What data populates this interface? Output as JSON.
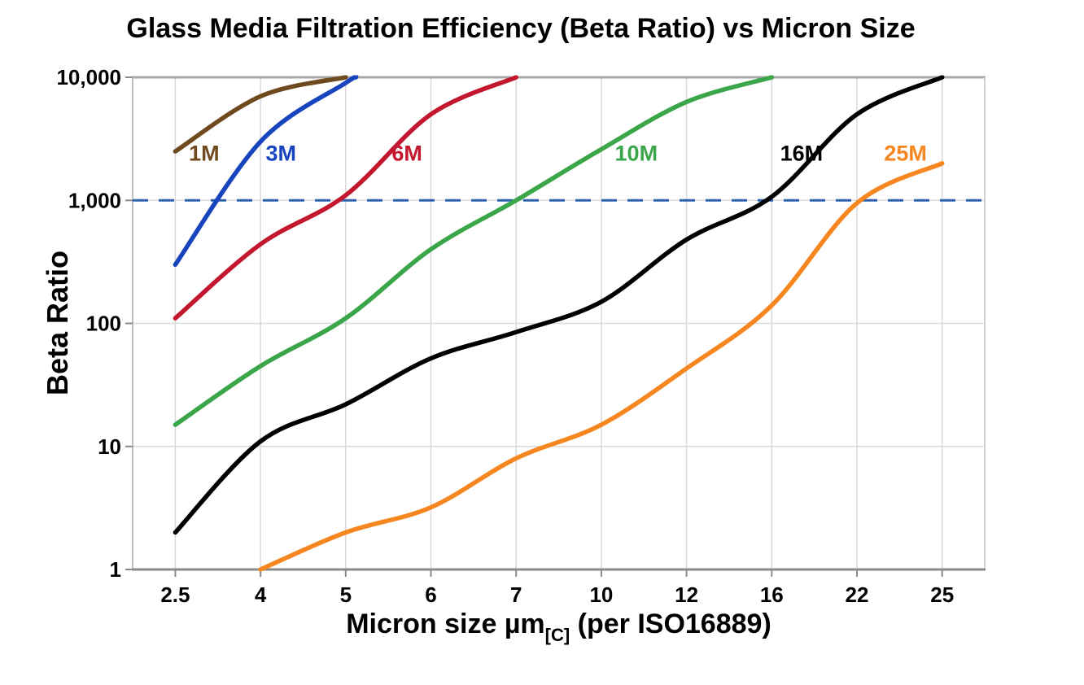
{
  "title": "Glass Media Filtration Efficiency (Beta Ratio) vs Micron Size",
  "chart_data": {
    "type": "line",
    "title": "Glass Media Filtration Efficiency (Beta Ratio) vs Micron Size",
    "x_axis": {
      "title_main": "Micron size µm",
      "title_sub": "[C]",
      "title_tail": " (per ISO16889)",
      "categories": [
        "2.5",
        "4",
        "5",
        "6",
        "7",
        "10",
        "12",
        "16",
        "22",
        "25"
      ]
    },
    "y_axis": {
      "title": "Beta Ratio",
      "scale": "log",
      "range": [
        1,
        10000
      ],
      "tick_labels": [
        "1",
        "10",
        "100",
        "1,000",
        "10,000"
      ],
      "tick_values": [
        1,
        10,
        100,
        1000,
        10000
      ]
    },
    "grid": "on",
    "legend_position": "inline-labels",
    "reference_line": {
      "value": 1000,
      "style": "dashed",
      "color": "#2E62AC"
    },
    "series": [
      {
        "name": "1M",
        "color": "#6E4A1E",
        "values": [
          2500,
          7000,
          10000,
          null,
          null,
          null,
          null,
          null,
          null,
          null
        ],
        "label_x_index": 0.34,
        "label_value": 2400
      },
      {
        "name": "3M",
        "color": "#1845BE",
        "values": [
          300,
          3000,
          9000,
          null,
          null,
          null,
          null,
          null,
          null,
          null
        ],
        "exit": {
          "index": 2.12,
          "value": 10000
        },
        "label_x_index": 1.24,
        "label_value": 2400
      },
      {
        "name": "6M",
        "color": "#C2172E",
        "values": [
          110,
          440,
          1100,
          5000,
          10000,
          null,
          null,
          null,
          null,
          null
        ],
        "label_x_index": 2.72,
        "label_value": 2400
      },
      {
        "name": "10M",
        "color": "#3BA549",
        "values": [
          15,
          45,
          110,
          400,
          1000,
          2600,
          6300,
          10000,
          null,
          null
        ],
        "label_x_index": 5.41,
        "label_value": 2400
      },
      {
        "name": "16M",
        "color": "#000000",
        "values": [
          2,
          11,
          22,
          52,
          85,
          150,
          480,
          1070,
          5000,
          10000
        ],
        "label_x_index": 7.35,
        "label_value": 2400
      },
      {
        "name": "25M",
        "color": "#F6861F",
        "values": [
          null,
          1,
          2,
          3.2,
          8,
          15,
          43,
          140,
          950,
          2000
        ],
        "label_x_index": 8.57,
        "label_value": 2400
      }
    ],
    "colors": {
      "gridline": "#D9D9D9",
      "axis_top": "#A8A8A8",
      "axis_bottom": "#8A8A8A",
      "axis_left": "#BFBFBF",
      "axis_right": "#CFCFCF",
      "tick": "#8A8A8A",
      "text": "#000000"
    }
  }
}
